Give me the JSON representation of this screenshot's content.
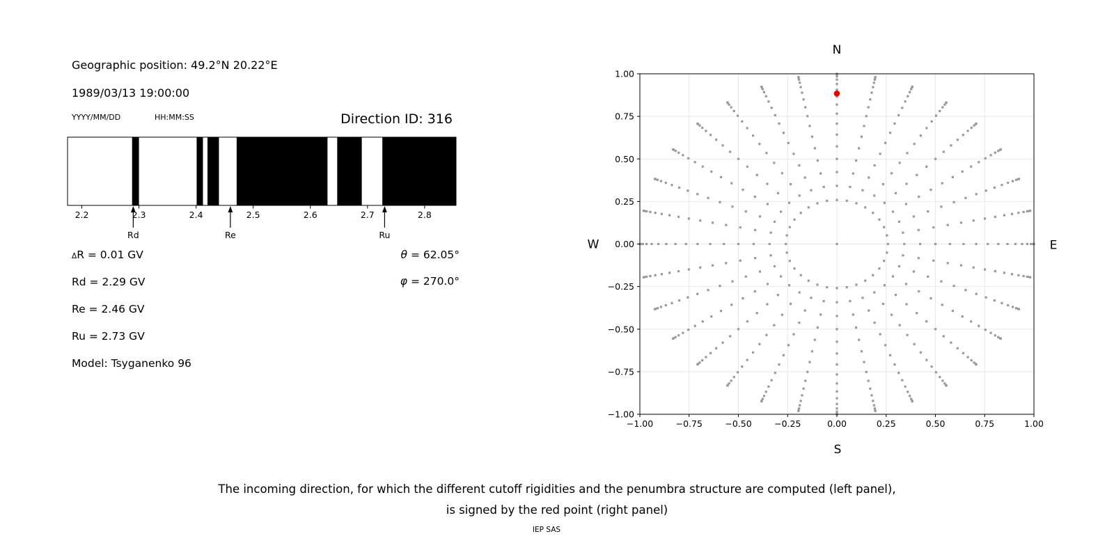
{
  "left_panel": {
    "geographic_position": "Geographic position: 49.2°N 20.22°E",
    "datetime": "1989/03/13 19:00:00",
    "date_format_label": "YYYY/MM/DD",
    "time_format_label": "HH:MM:SS",
    "direction_id": "Direction ID: 316",
    "values": {
      "delta_sym": "Δ",
      "delta_rest": "R = 0.01 GV",
      "rd": "Rd = 2.29 GV",
      "re": "Re = 2.46 GV",
      "ru": "Ru = 2.73 GV",
      "model": "Model: Tsyganenko 96",
      "theta_sym": "θ",
      "theta_rest": " = 62.05°",
      "phi_sym": "φ",
      "phi_rest": " = 270.0°"
    }
  },
  "caption": {
    "line1": "The incoming direction, for which the different cutoff rigidities and the penumbra structure are computed (left panel),",
    "line2": "is signed by the red point (right panel)",
    "credit": "IEP SAS"
  },
  "chart_data": [
    {
      "id": "penumbra",
      "type": "bar",
      "description": "Penumbra structure: black bands = forbidden rigidity intervals, white = allowed",
      "xlim": [
        2.175,
        2.855
      ],
      "x_ticks": [
        2.2,
        2.3,
        2.4,
        2.5,
        2.6,
        2.7,
        2.8
      ],
      "x_tick_labels": [
        "2.2",
        "2.3",
        "2.4",
        "2.5",
        "2.6",
        "2.7",
        "2.8"
      ],
      "forbidden_bands_gv": [
        [
          2.288,
          2.3
        ],
        [
          2.401,
          2.412
        ],
        [
          2.42,
          2.44
        ],
        [
          2.471,
          2.63
        ],
        [
          2.647,
          2.69
        ],
        [
          2.726,
          2.855
        ]
      ],
      "band_color": "#000000",
      "background_color": "#ffffff",
      "markers": [
        {
          "label": "Rd",
          "value": 2.29
        },
        {
          "label": "Re",
          "value": 2.46
        },
        {
          "label": "Ru",
          "value": 2.73
        }
      ]
    },
    {
      "id": "direction-map",
      "type": "scatter",
      "description": "Grid of incoming directions; red point marks the computed direction",
      "xlim": [
        -1,
        1
      ],
      "ylim": [
        -1,
        1
      ],
      "x_tick_values": [
        -1,
        -0.75,
        -0.5,
        -0.25,
        0,
        0.25,
        0.5,
        0.75,
        1
      ],
      "x_tick_labels": [
        "−1.00",
        "−0.75",
        "−0.50",
        "−0.25",
        "0.00",
        "0.25",
        "0.50",
        "0.75",
        "1.00"
      ],
      "y_tick_values": [
        -1,
        -0.75,
        -0.5,
        -0.25,
        0,
        0.25,
        0.5,
        0.75,
        1
      ],
      "y_tick_labels": [
        "−1.00",
        "−0.75",
        "−0.50",
        "−0.25",
        "0.00",
        "0.25",
        "0.50",
        "0.75",
        "1.00"
      ],
      "grid": true,
      "grid_color": "#e8e8e8",
      "compass": {
        "top": "N",
        "bottom": "S",
        "left": "W",
        "right": "E"
      },
      "point_color": "#9a9a9a",
      "azimuth_count": 32,
      "azimuth_step_deg": 11.25,
      "zenith_angles_deg": [
        15,
        20,
        25,
        30,
        35,
        40,
        45,
        50,
        55,
        60,
        65,
        70,
        75,
        80,
        85,
        90
      ],
      "radius_rule": "sin(zenith)",
      "center_point": [
        0,
        0
      ],
      "red_point": {
        "x": 0.0,
        "y": 0.884,
        "color": "#e50000"
      }
    }
  ]
}
